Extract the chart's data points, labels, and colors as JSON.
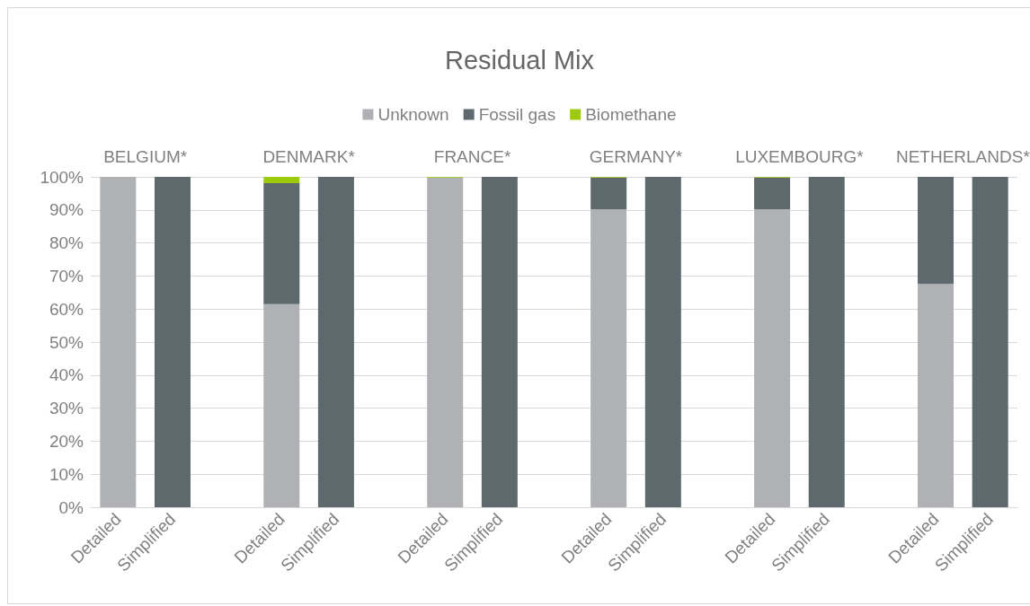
{
  "chart_data": {
    "type": "bar",
    "title": "Residual Mix",
    "stacked": true,
    "categories": [
      "Detailed",
      "Simplified",
      null,
      "Detailed",
      "Simplified",
      null,
      "Detailed",
      "Simplified",
      null,
      "Detailed",
      "Simplified",
      null,
      "Detailed",
      "Simplified",
      null,
      "Detailed",
      "Simplified"
    ],
    "series": [
      {
        "name": "Unknown",
        "color": "#b0b1b5",
        "values": [
          100,
          0,
          null,
          61.5,
          0,
          null,
          99.8,
          0,
          null,
          90.2,
          0,
          null,
          90.2,
          0,
          null,
          67.6,
          0
        ]
      },
      {
        "name": "Fossil gas",
        "color": "#5e696d",
        "values": [
          0,
          100,
          null,
          36.6,
          100,
          null,
          0,
          100,
          null,
          9.6,
          100,
          null,
          9.6,
          100,
          null,
          32.4,
          100
        ]
      },
      {
        "name": "Biomethane",
        "color": "#9dcb0c",
        "values": [
          0,
          0,
          null,
          1.9,
          0,
          null,
          0.2,
          0,
          null,
          0.2,
          0,
          null,
          0.2,
          0,
          null,
          0,
          0
        ]
      }
    ],
    "annotations": [
      "BELGIUM*",
      "DENMARK*",
      "FRANCE*",
      "GERMANY*",
      "LUXEMBOURG*",
      "NETHERLANDS*"
    ],
    "ylim": [
      0,
      100
    ],
    "yticks": [
      {
        "value": 0,
        "label": "0%"
      },
      {
        "value": 10,
        "label": "10%"
      },
      {
        "value": 20,
        "label": "20%"
      },
      {
        "value": 30,
        "label": "30%"
      },
      {
        "value": 40,
        "label": "40%"
      },
      {
        "value": 50,
        "label": "50%"
      },
      {
        "value": 60,
        "label": "60%"
      },
      {
        "value": 70,
        "label": "70%"
      },
      {
        "value": 80,
        "label": "80%"
      },
      {
        "value": 90,
        "label": "90%"
      },
      {
        "value": 100,
        "label": "100%"
      }
    ],
    "grid": "y",
    "legend": "top"
  }
}
